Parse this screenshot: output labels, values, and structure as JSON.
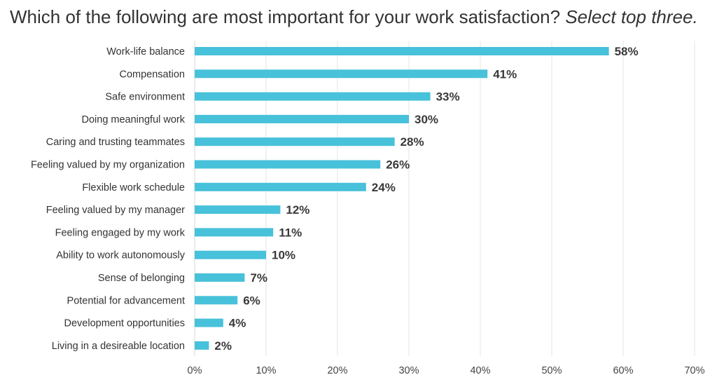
{
  "chart_data": {
    "type": "bar",
    "orientation": "horizontal",
    "title": "Which of the following are most important for your work satisfaction?",
    "subtitle": "Select top three.",
    "categories": [
      "Work-life balance",
      "Compensation",
      "Safe environment",
      "Doing meaningful work",
      "Caring and trusting teammates",
      "Feeling valued by my organization",
      "Flexible work schedule",
      "Feeling valued by my manager",
      "Feeling engaged by my work",
      "Ability to work autonomously",
      "Sense of belonging",
      "Potential for advancement",
      "Development opportunities",
      "Living in a desireable location"
    ],
    "values": [
      58,
      41,
      33,
      30,
      28,
      26,
      24,
      12,
      11,
      10,
      7,
      6,
      4,
      2
    ],
    "value_labels": [
      "58%",
      "41%",
      "33%",
      "30%",
      "28%",
      "26%",
      "24%",
      "12%",
      "11%",
      "10%",
      "7%",
      "6%",
      "4%",
      "2%"
    ],
    "xlim": [
      0,
      70
    ],
    "x_ticks": [
      "0%",
      "10%",
      "20%",
      "30%",
      "40%",
      "50%",
      "60%",
      "70%"
    ],
    "grid": "vertical",
    "legend": "none",
    "bar_color": "#48C1DA"
  }
}
